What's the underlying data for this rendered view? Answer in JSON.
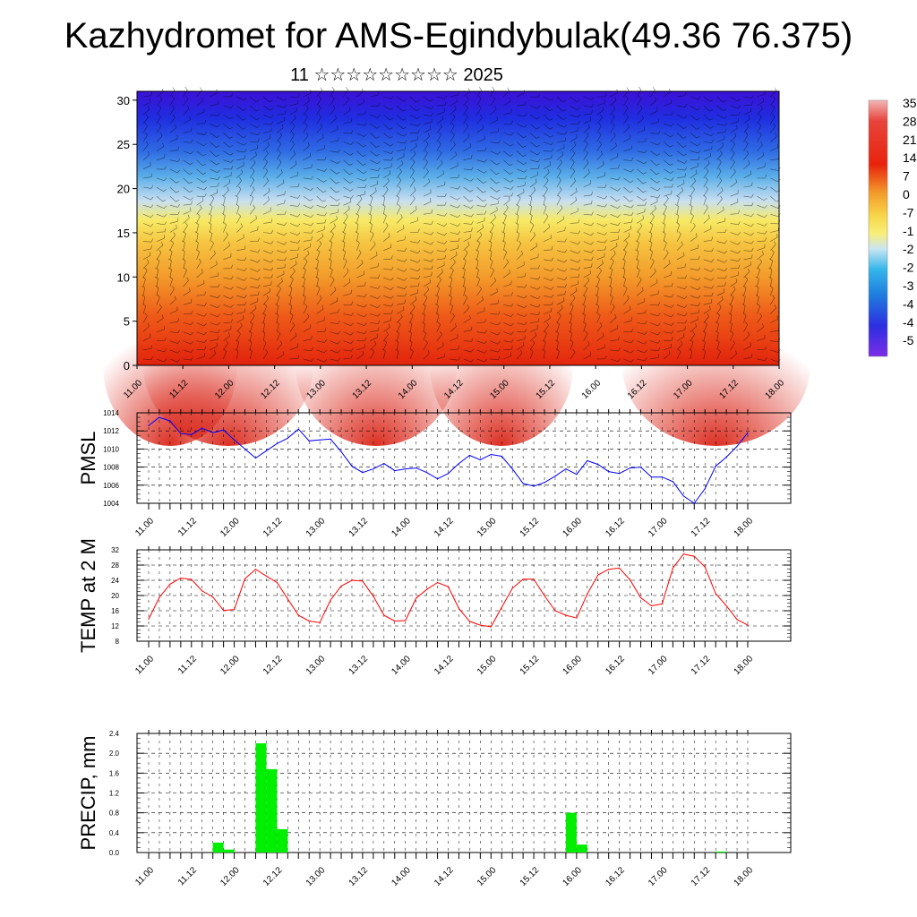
{
  "page": {
    "title": "Kazhydromet for AMS-Egindybulak(49.36 76.375)",
    "subtitle": "11 ☆☆☆☆☆☆☆☆☆ 2025"
  },
  "chart_data": [
    {
      "type": "heatmap",
      "title": "",
      "xlabel": "",
      "ylabel": "",
      "x_tick_labels": [
        "11.00",
        "11.12",
        "12.00",
        "12.12",
        "13.00",
        "13.12",
        "14.00",
        "14.12",
        "15.00",
        "15.12",
        "16.00",
        "16.12",
        "17.00",
        "17.12",
        "18.00"
      ],
      "y_ticks": [
        0,
        5,
        10,
        15,
        20,
        25,
        30
      ],
      "ylim": [
        0,
        31
      ],
      "colorbar_labels": [
        "35",
        "28",
        "21",
        "14",
        "7",
        "0",
        "-7",
        "-1",
        "-2",
        "-2",
        "-3",
        "-4",
        "-4",
        "-5"
      ],
      "colors": {
        "warm": "#e8230c",
        "mid": "#f6e04c",
        "cold": "#1a2fd6"
      },
      "overlay": "wind barbs"
    },
    {
      "type": "line",
      "ylabel": "PMSL",
      "ylim": [
        1004,
        1014
      ],
      "y_ticks": [
        1004,
        1006,
        1008,
        1010,
        1012,
        1014
      ],
      "x_tick_labels": [
        "11.00",
        "11.12",
        "12.00",
        "12.12",
        "13.00",
        "13.12",
        "14.00",
        "14.12",
        "15.00",
        "15.12",
        "16.00",
        "16.12",
        "17.00",
        "17.12",
        "18.00"
      ],
      "color": "#0000ff",
      "grid": true,
      "values": [
        1012.6,
        1013.5,
        1013.1,
        1011.7,
        1011.6,
        1012.3,
        1011.8,
        1012.1,
        1011.0,
        1010.0,
        1009.0,
        1009.8,
        1010.6,
        1011.2,
        1012.2,
        1010.9,
        1011.0,
        1011.1,
        1009.7,
        1008.1,
        1007.4,
        1007.8,
        1008.4,
        1007.6,
        1007.8,
        1007.9,
        1007.4,
        1006.7,
        1007.3,
        1008.4,
        1009.3,
        1008.8,
        1009.4,
        1009.2,
        1007.8,
        1006.2,
        1005.9,
        1006.3,
        1007.0,
        1007.8,
        1007.2,
        1008.7,
        1008.3,
        1007.5,
        1007.3,
        1007.9,
        1008.0,
        1006.9,
        1006.9,
        1006.4,
        1004.8,
        1004.0,
        1005.6,
        1008.1,
        1009.1,
        1010.3,
        1011.8
      ]
    },
    {
      "type": "line",
      "ylabel": "TEMP at 2 M",
      "ylim": [
        8,
        32
      ],
      "y_ticks": [
        8,
        12,
        16,
        20,
        24,
        28,
        32
      ],
      "x_tick_labels": [
        "11.00",
        "11.12",
        "12.00",
        "12.12",
        "13.00",
        "13.12",
        "14.00",
        "14.12",
        "15.00",
        "15.12",
        "16.00",
        "16.12",
        "17.00",
        "17.12",
        "18.00"
      ],
      "color": "#ff0000",
      "grid": true,
      "values": [
        13.8,
        19.5,
        23.0,
        24.6,
        24.2,
        21.2,
        19.6,
        16.1,
        16.3,
        24.4,
        26.9,
        25.1,
        23.4,
        19.1,
        14.8,
        13.3,
        12.9,
        18.8,
        22.5,
        24.0,
        23.8,
        19.8,
        14.8,
        13.3,
        13.4,
        19.3,
        21.6,
        23.4,
        22.3,
        16.6,
        13.2,
        12.2,
        11.8,
        16.9,
        21.9,
        24.3,
        24.3,
        19.9,
        16.0,
        14.8,
        14.1,
        20.4,
        25.4,
        26.9,
        27.2,
        24.1,
        19.4,
        17.3,
        17.8,
        27.2,
        30.9,
        30.3,
        27.5,
        20.5,
        17.3,
        13.7,
        12.2
      ]
    },
    {
      "type": "bar",
      "ylabel": "PRECIP, mm",
      "ylim": [
        0,
        2.4
      ],
      "y_ticks": [
        "0.0",
        "0.4",
        "0.8",
        "1.2",
        "1.6",
        "2.0",
        "2.4"
      ],
      "x_tick_labels": [
        "11.00",
        "11.12",
        "12.00",
        "12.12",
        "13.00",
        "13.12",
        "14.00",
        "14.12",
        "15.00",
        "15.12",
        "16.00",
        "16.12",
        "17.00",
        "17.12",
        "18.00"
      ],
      "color": "#00ee00",
      "grid": true,
      "bars": [
        {
          "step": 7,
          "value": 0.2
        },
        {
          "step": 8,
          "value": 0.06
        },
        {
          "step": 11,
          "value": 2.2
        },
        {
          "step": 12,
          "value": 1.68
        },
        {
          "step": 13,
          "value": 0.47
        },
        {
          "step": 40,
          "value": 0.8
        },
        {
          "step": 41,
          "value": 0.16
        },
        {
          "step": 54,
          "value": 0.02
        }
      ]
    }
  ]
}
